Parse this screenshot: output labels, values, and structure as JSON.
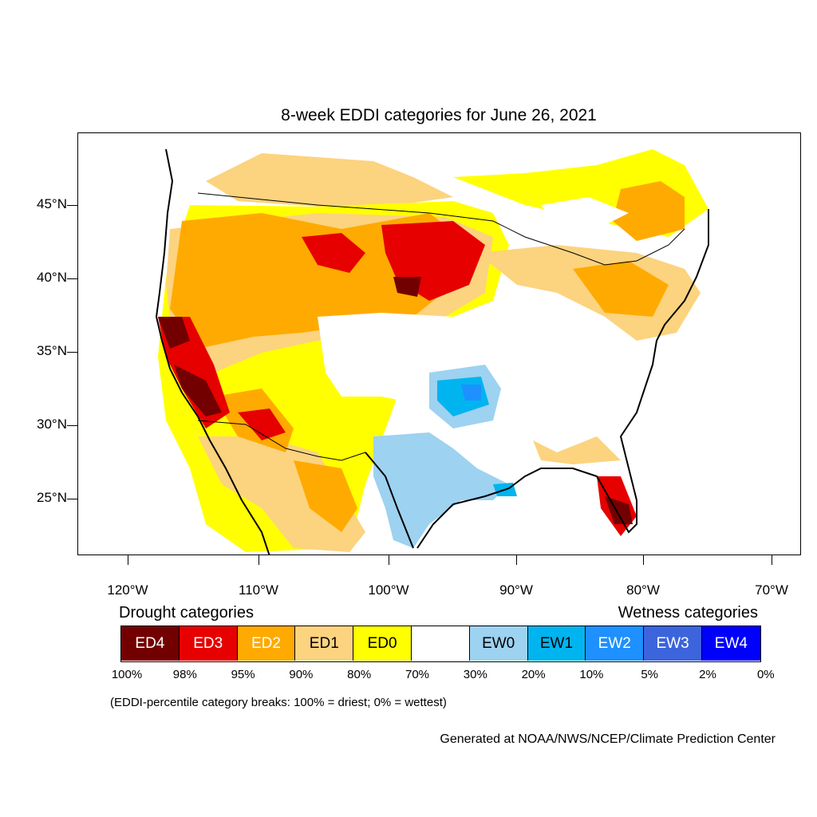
{
  "title": "8-week EDDI categories for June 26, 2021",
  "lat_labels": [
    "45°N",
    "40°N",
    "35°N",
    "30°N",
    "25°N"
  ],
  "lon_labels": [
    "120°W",
    "110°W",
    "100°W",
    "90°W",
    "80°W",
    "70°W"
  ],
  "drought_heading": "Drought categories",
  "wetness_heading": "Wetness categories",
  "legend": [
    {
      "label": "ED4",
      "color": "#730000",
      "text_color": "#ffffff"
    },
    {
      "label": "ED3",
      "color": "#e60000",
      "text_color": "#ffffff"
    },
    {
      "label": "ED2",
      "color": "#ffaa00",
      "text_color": "#ffffff"
    },
    {
      "label": "ED1",
      "color": "#fcd37f",
      "text_color": "#000000"
    },
    {
      "label": "ED0",
      "color": "#ffff00",
      "text_color": "#000000"
    },
    {
      "label": "",
      "color": "#ffffff",
      "text_color": "#000000"
    },
    {
      "label": "EW0",
      "color": "#9dd2f0",
      "text_color": "#000000"
    },
    {
      "label": "EW1",
      "color": "#00b4f0",
      "text_color": "#000000"
    },
    {
      "label": "EW2",
      "color": "#1e90ff",
      "text_color": "#ffffff"
    },
    {
      "label": "EW3",
      "color": "#3c64dc",
      "text_color": "#ffffff"
    },
    {
      "label": "EW4",
      "color": "#0000ff",
      "text_color": "#ffffff"
    }
  ],
  "percent_breaks": [
    "100%",
    "98%",
    "95%",
    "90%",
    "80%",
    "70%",
    "30%",
    "20%",
    "10%",
    "5%",
    "2%",
    "0%"
  ],
  "note": "(EDDI-percentile category breaks: 100% = driest; 0% = wettest)",
  "credit": "Generated at NOAA/NWS/NCEP/Climate Prediction Center"
}
